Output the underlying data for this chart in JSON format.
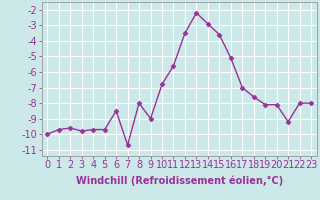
{
  "x": [
    0,
    1,
    2,
    3,
    4,
    5,
    6,
    7,
    8,
    9,
    10,
    11,
    12,
    13,
    14,
    15,
    16,
    17,
    18,
    19,
    20,
    21,
    22,
    23
  ],
  "y": [
    -10.0,
    -9.7,
    -9.6,
    -9.8,
    -9.7,
    -9.7,
    -8.5,
    -10.7,
    -8.0,
    -9.0,
    -6.8,
    -5.6,
    -3.5,
    -2.2,
    -2.9,
    -3.6,
    -5.1,
    -7.0,
    -7.6,
    -8.1,
    -8.1,
    -9.2,
    -8.0,
    -8.0
  ],
  "line_color": "#993399",
  "marker": "D",
  "marker_size": 2.5,
  "linewidth": 1.0,
  "bg_color": "#cce8e8",
  "grid_color": "#ffffff",
  "xlabel": "Windchill (Refroidissement éolien,°C)",
  "xlim": [
    -0.5,
    23.5
  ],
  "ylim": [
    -11.4,
    -1.5
  ],
  "yticks": [
    -11,
    -10,
    -9,
    -8,
    -7,
    -6,
    -5,
    -4,
    -3,
    -2
  ],
  "xticks": [
    0,
    1,
    2,
    3,
    4,
    5,
    6,
    7,
    8,
    9,
    10,
    11,
    12,
    13,
    14,
    15,
    16,
    17,
    18,
    19,
    20,
    21,
    22,
    23
  ],
  "xlabel_fontsize": 7,
  "tick_fontsize": 7,
  "label_color": "#993399"
}
